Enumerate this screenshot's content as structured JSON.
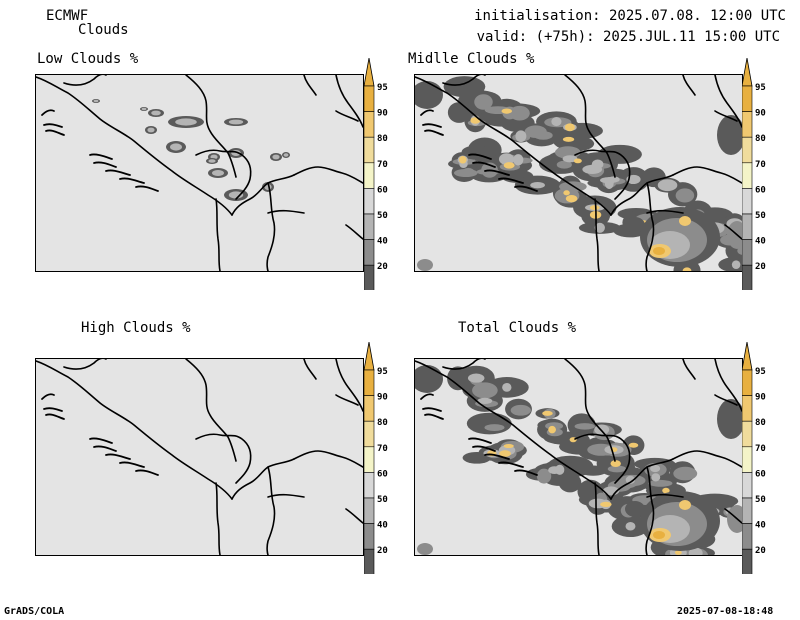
{
  "header": {
    "model": "ECMWF",
    "product": "Clouds",
    "init": "initialisation: 2025.07.08. 12:00 UTC",
    "valid": "valid: (+75h): 2025.JUL.11 15:00 UTC"
  },
  "panels": [
    {
      "title": "Low Clouds %",
      "key": "low"
    },
    {
      "title": "Midlle Clouds %",
      "key": "mid"
    },
    {
      "title": "High Clouds %",
      "key": "high"
    },
    {
      "title": "Total Clouds %",
      "key": "total"
    }
  ],
  "colorbar": {
    "labels": [
      "95",
      "90",
      "80",
      "70",
      "60",
      "50",
      "40",
      "20"
    ],
    "colors": [
      "#e8b040",
      "#f0c870",
      "#f0dc9c",
      "#f4f4c8",
      "#d8d8d8",
      "#b4b4b4",
      "#8c8c8c",
      "#5a5a5a"
    ]
  },
  "footer": {
    "left": "GrADS/COLA",
    "right": "2025-07-08-18:48"
  }
}
